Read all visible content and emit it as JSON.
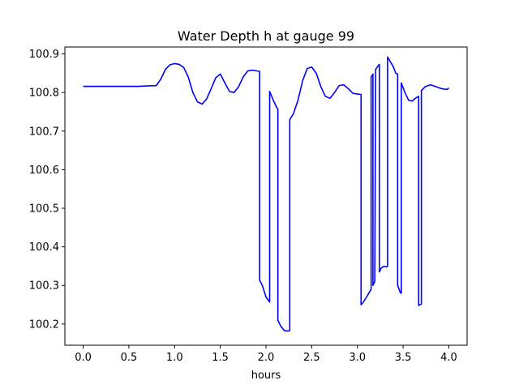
{
  "chart_data": {
    "type": "line",
    "title": "Water Depth h at gauge 99",
    "xlabel": "hours",
    "ylabel": "",
    "xlim": [
      -0.2,
      4.2
    ],
    "ylim": [
      100.145,
      100.918
    ],
    "xticks": [
      0.0,
      0.5,
      1.0,
      1.5,
      2.0,
      2.5,
      3.0,
      3.5,
      4.0
    ],
    "xtick_labels": [
      "0.0",
      "0.5",
      "1.0",
      "1.5",
      "2.0",
      "2.5",
      "3.0",
      "3.5",
      "4.0"
    ],
    "yticks": [
      100.2,
      100.3,
      100.4,
      100.5,
      100.6,
      100.7,
      100.8,
      100.9
    ],
    "ytick_labels": [
      "100.2",
      "100.3",
      "100.4",
      "100.5",
      "100.6",
      "100.7",
      "100.8",
      "100.9"
    ],
    "grid": false,
    "series": [
      {
        "color": "#0000ff",
        "x": [
          0.0,
          0.3,
          0.6,
          0.8,
          0.85,
          0.9,
          0.95,
          1.0,
          1.05,
          1.1,
          1.15,
          1.2,
          1.25,
          1.3,
          1.35,
          1.4,
          1.45,
          1.5,
          1.55,
          1.6,
          1.65,
          1.7,
          1.75,
          1.8,
          1.85,
          1.9,
          1.93,
          1.93,
          1.96,
          2.0,
          2.04,
          2.04,
          2.08,
          2.12,
          2.13,
          2.13,
          2.16,
          2.2,
          2.24,
          2.26,
          2.26,
          2.3,
          2.35,
          2.4,
          2.45,
          2.5,
          2.55,
          2.6,
          2.65,
          2.7,
          2.75,
          2.8,
          2.85,
          2.9,
          2.95,
          3.0,
          3.04,
          3.04,
          3.06,
          3.1,
          3.15,
          3.15,
          3.17,
          3.17,
          3.19,
          3.2,
          3.22,
          3.24,
          3.24,
          3.26,
          3.29,
          3.32,
          3.33,
          3.33,
          3.36,
          3.39,
          3.42,
          3.44,
          3.44,
          3.47,
          3.48,
          3.48,
          3.52,
          3.56,
          3.6,
          3.64,
          3.67,
          3.67,
          3.7,
          3.7,
          3.74,
          3.8,
          3.86,
          3.92,
          3.98,
          4.0
        ],
        "y": [
          100.816,
          100.816,
          100.816,
          100.818,
          100.835,
          100.86,
          100.872,
          100.875,
          100.873,
          100.865,
          100.84,
          100.8,
          100.776,
          100.77,
          100.783,
          100.81,
          100.838,
          100.848,
          100.825,
          100.803,
          100.8,
          100.815,
          100.84,
          100.856,
          100.858,
          100.856,
          100.855,
          100.314,
          100.3,
          100.27,
          100.257,
          100.803,
          100.78,
          100.76,
          100.757,
          100.21,
          100.195,
          100.183,
          100.182,
          100.183,
          100.73,
          100.745,
          100.78,
          100.83,
          100.862,
          100.866,
          100.85,
          100.815,
          100.79,
          100.785,
          100.8,
          100.818,
          100.82,
          100.81,
          100.798,
          100.796,
          100.795,
          100.25,
          100.255,
          100.27,
          100.29,
          100.84,
          100.848,
          100.3,
          100.31,
          100.86,
          100.867,
          100.873,
          100.335,
          100.345,
          100.35,
          100.348,
          100.35,
          100.892,
          100.88,
          100.868,
          100.85,
          100.848,
          100.3,
          100.281,
          100.28,
          100.825,
          100.8,
          100.78,
          100.778,
          100.786,
          100.79,
          100.248,
          100.252,
          100.805,
          100.815,
          100.82,
          100.815,
          100.81,
          100.808,
          100.812
        ]
      }
    ]
  }
}
